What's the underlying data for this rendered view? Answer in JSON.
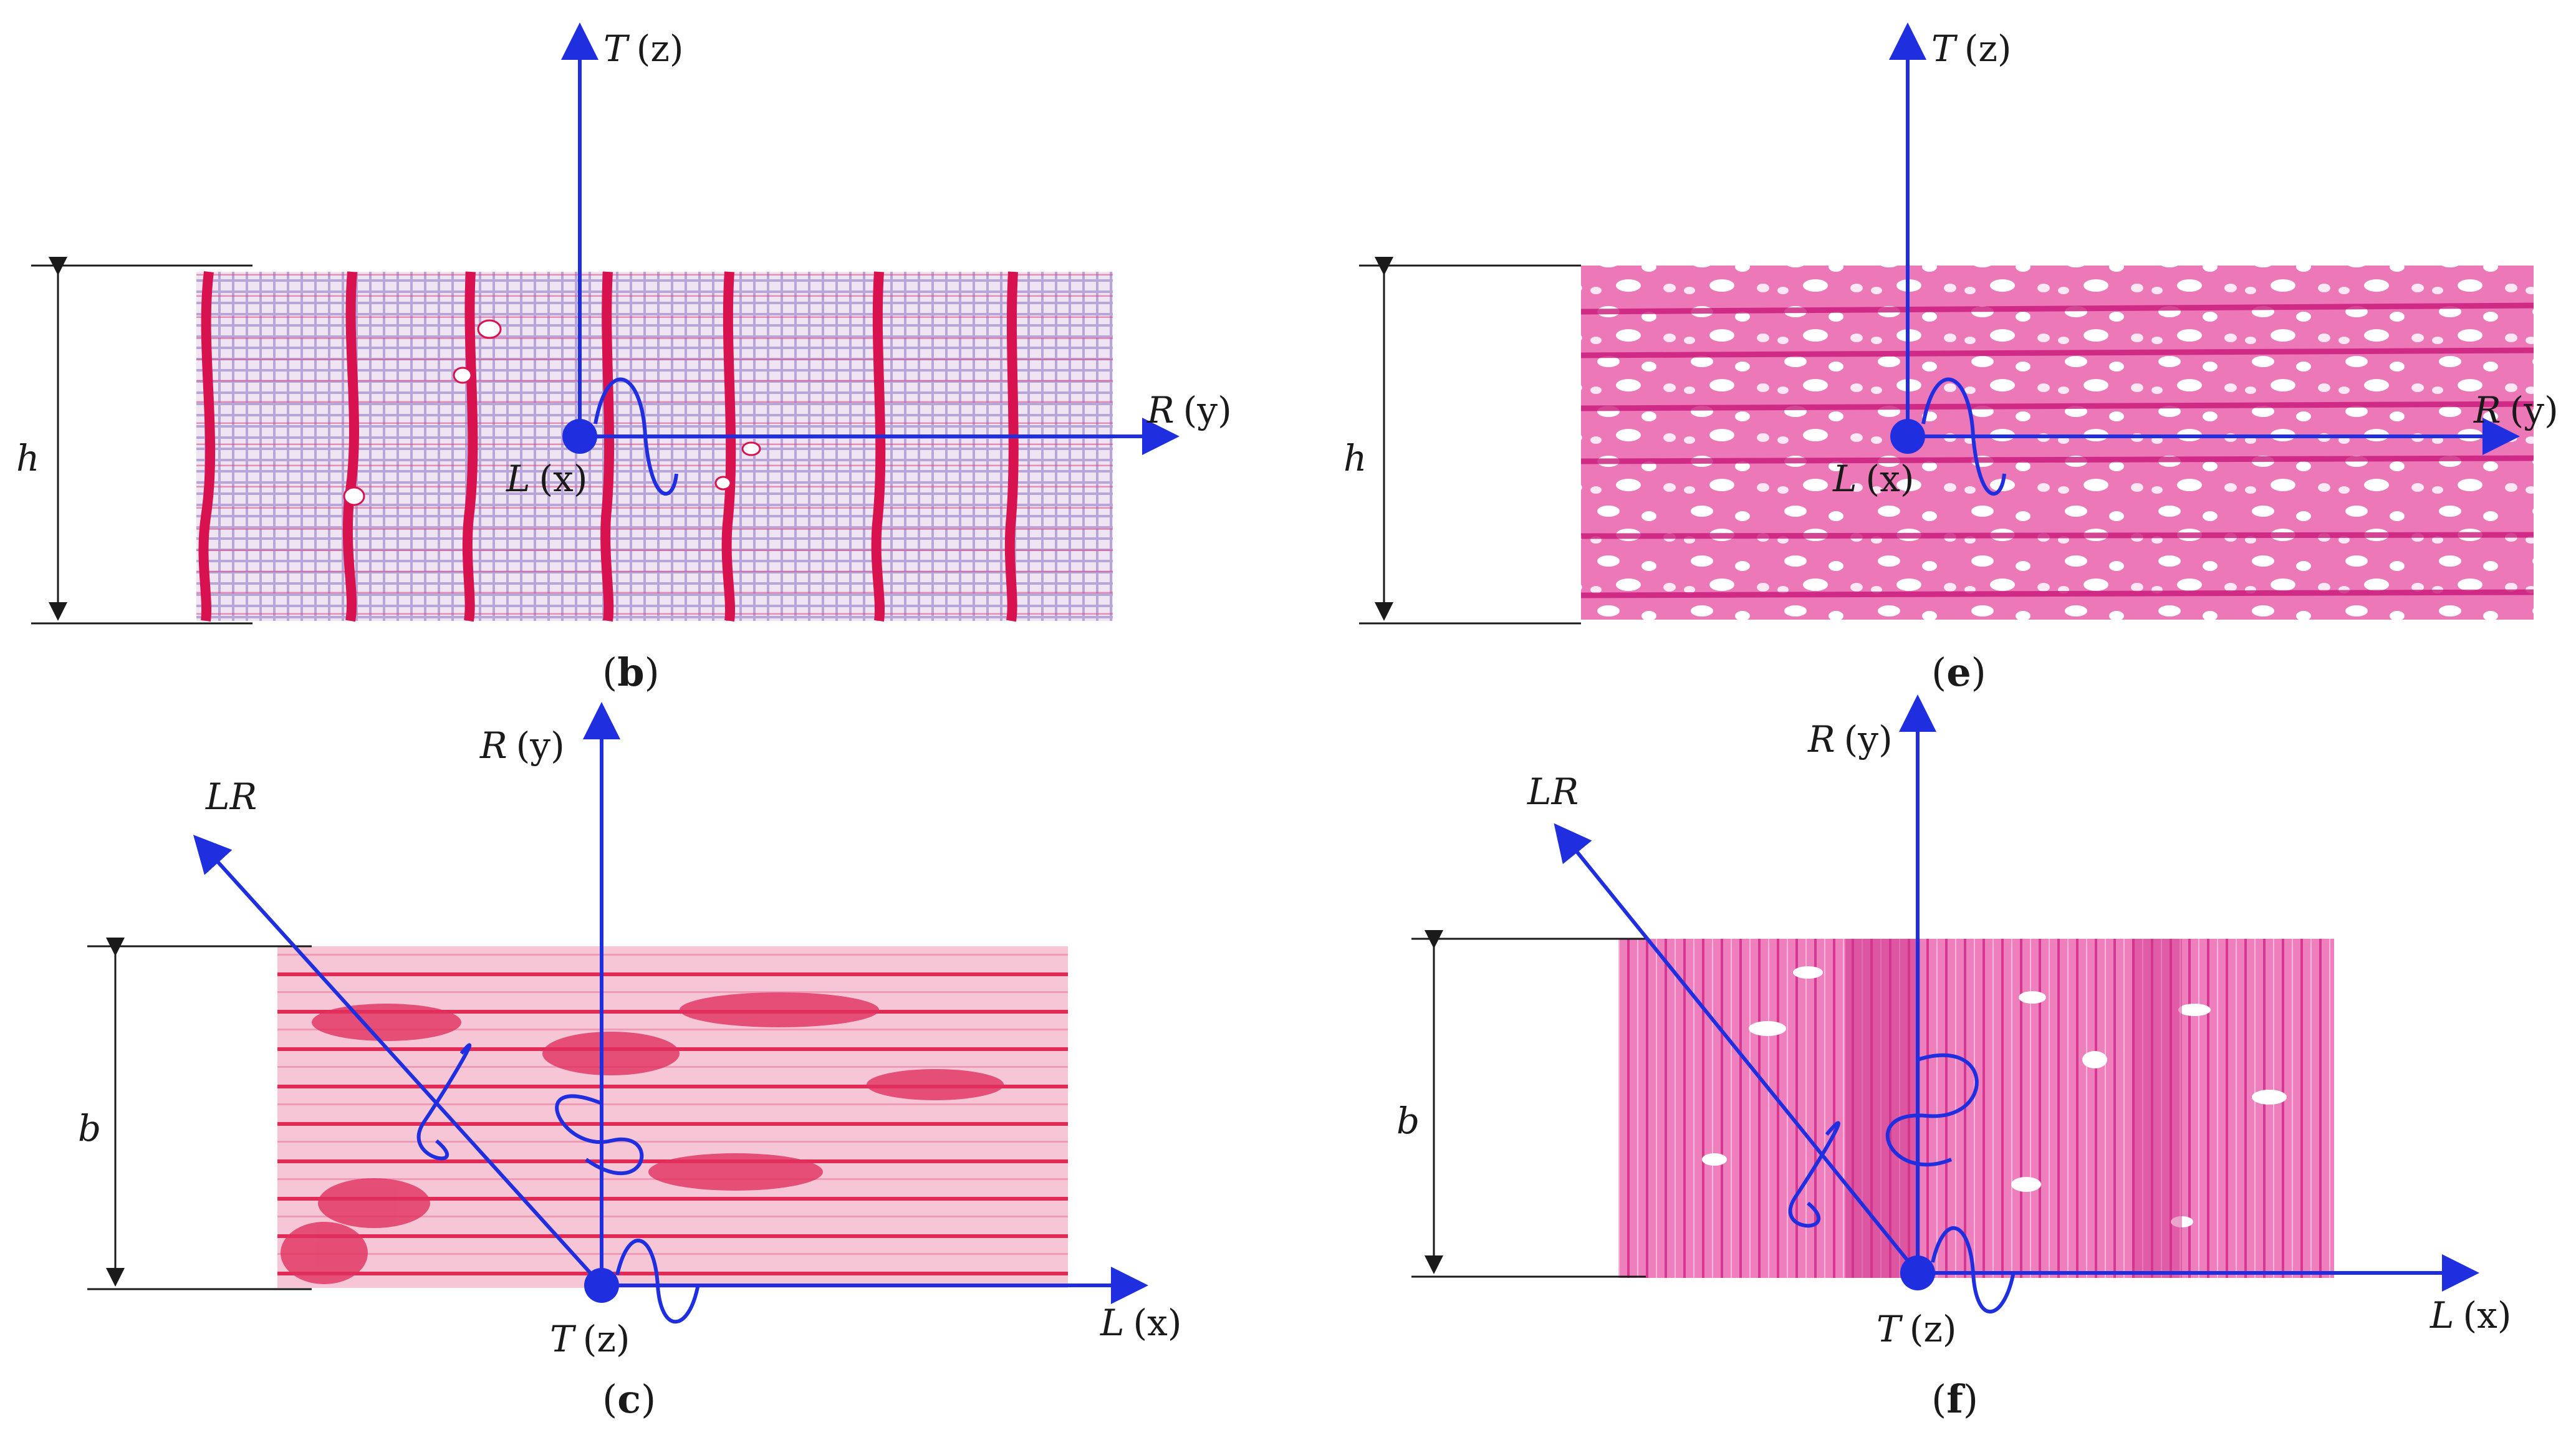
{
  "colors": {
    "axis": "#1f2fe0",
    "dimension_line": "#1a1a1a",
    "tissue_light": "#f2d8ee",
    "tissue_ring": "#d8124e",
    "tissue_ray": "#e8167c",
    "tissue_pink_bg": "#ee6fb2",
    "tissue_red": "#e0305e"
  },
  "panels": [
    {
      "id": "b",
      "caption_open": "(",
      "caption_letter": "b",
      "caption_close": ")",
      "dimension_symbol": "h",
      "axes": {
        "vertical": "T (z)",
        "horizontal": "R (y)",
        "origin": "L (x)"
      }
    },
    {
      "id": "e",
      "caption_open": "(",
      "caption_letter": "e",
      "caption_close": ")",
      "dimension_symbol": "h",
      "axes": {
        "vertical": "T (z)",
        "horizontal": "R (y)",
        "origin": "L (x)"
      }
    },
    {
      "id": "c",
      "caption_open": "(",
      "caption_letter": "c",
      "caption_close": ")",
      "dimension_symbol": "b",
      "axes": {
        "vertical": "R (y)",
        "horizontal": "L (x)",
        "origin": "T (z)",
        "diagonal": "LR"
      }
    },
    {
      "id": "f",
      "caption_open": "(",
      "caption_letter": "f",
      "caption_close": ")",
      "dimension_symbol": "b",
      "axes": {
        "vertical": "R (y)",
        "horizontal": "L (x)",
        "origin": "T (z)",
        "diagonal": "LR"
      }
    }
  ],
  "axis_symbols": {
    "T": "T",
    "R": "R",
    "L": "L",
    "LR": "LR"
  },
  "axis_coords": {
    "z": "(z)",
    "y": "(y)",
    "x": "(x)"
  }
}
